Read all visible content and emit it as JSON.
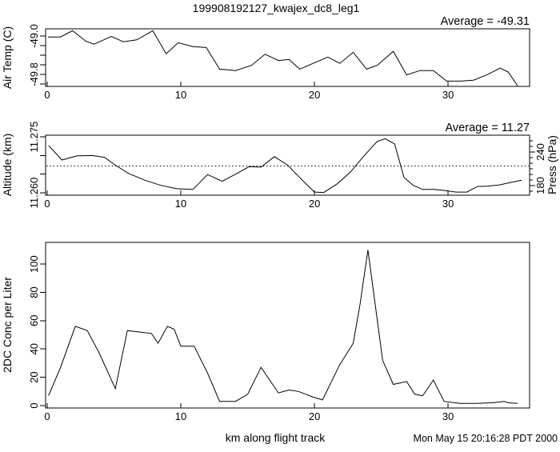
{
  "title": "199908192127_kwajex_dc8_leg1",
  "footer": {
    "xlabel": "km along flight track",
    "timestamp": "Mon May 15 20:16:28 PDT 2000"
  },
  "colors": {
    "line": "#000000",
    "background": "#ffffff",
    "text": "#000000"
  },
  "chart_data": [
    {
      "type": "line",
      "id": "air-temp",
      "ylabel": "Air Temp (C)",
      "annotation": "Average = -49.31",
      "average_value": -49.31,
      "xlim": [
        -0.12,
        36.1
      ],
      "ylim": [
        -50.05,
        -48.85
      ],
      "grid": false,
      "xticks": [
        {
          "v": 0,
          "label": "0"
        },
        {
          "v": 10,
          "label": "10"
        },
        {
          "v": 20,
          "label": "20"
        },
        {
          "v": 30,
          "label": "30"
        }
      ],
      "yticks": [
        {
          "v": -49.0,
          "label": "-49.0"
        },
        {
          "v": -49.2
        },
        {
          "v": -49.4
        },
        {
          "v": -49.6
        },
        {
          "v": -49.8,
          "label": "-49.8"
        },
        {
          "v": -50.0
        }
      ],
      "x": [
        0.05,
        1.0,
        1.9,
        2.9,
        3.5,
        4.8,
        5.7,
        6.7,
        7.9,
        8.9,
        9.8,
        10.9,
        11.9,
        12.9,
        14.1,
        15.3,
        16.3,
        17.3,
        18.1,
        18.9,
        19.9,
        21.0,
        21.9,
        22.9,
        23.9,
        24.7,
        25.9,
        26.9,
        27.9,
        28.9,
        29.9,
        30.9,
        31.9,
        32.9,
        33.9,
        34.5,
        35.2
      ],
      "y": [
        -49.02,
        -49.02,
        -48.89,
        -49.11,
        -49.17,
        -49.01,
        -49.12,
        -49.08,
        -48.89,
        -49.37,
        -49.14,
        -49.22,
        -49.24,
        -49.69,
        -49.72,
        -49.61,
        -49.38,
        -49.51,
        -49.49,
        -49.69,
        -49.57,
        -49.44,
        -49.57,
        -49.34,
        -49.69,
        -49.61,
        -49.32,
        -49.81,
        -49.72,
        -49.72,
        -49.94,
        -49.94,
        -49.92,
        -49.81,
        -49.67,
        -49.75,
        -50.04
      ]
    },
    {
      "type": "line",
      "id": "altitude",
      "ylabel": "Altitude (km)",
      "ylabel_right": "Press (hPa)",
      "annotation": "Average = 11.27",
      "average_value": 11.27,
      "average_line": 11.2672,
      "xlim": [
        -0.12,
        36.1
      ],
      "ylim": [
        11.25936,
        11.27545
      ],
      "grid": false,
      "xticks": [
        {
          "v": 0,
          "label": "0"
        },
        {
          "v": 10,
          "label": "10"
        },
        {
          "v": 20,
          "label": "20"
        },
        {
          "v": 30,
          "label": "30"
        }
      ],
      "yticks": [
        {
          "v": 11.275,
          "label": "11.275"
        },
        {
          "v": 11.27
        },
        {
          "v": 11.265
        },
        {
          "v": 11.26,
          "label": "11.260"
        }
      ],
      "right_axis": {
        "ylim": [
          162.9,
          270.0
        ],
        "major": [
          {
            "v": 240,
            "label": "240"
          },
          {
            "v": 180,
            "label": "180"
          }
        ],
        "minor": [
          170,
          180,
          190,
          200,
          210,
          220,
          230,
          240,
          250,
          260
        ]
      },
      "x": [
        0.1,
        1.1,
        2.2,
        3.4,
        4.3,
        5.1,
        6.1,
        7.3,
        8.5,
        9.7,
        10.9,
        12.0,
        13.1,
        14.2,
        15.1,
        16.0,
        17.0,
        18.0,
        19.0,
        20.0,
        20.7,
        21.7,
        22.7,
        23.7,
        24.7,
        25.3,
        26.0,
        26.7,
        27.4,
        28.1,
        29.0,
        29.8,
        30.6,
        31.4,
        32.2,
        33.0,
        33.8,
        34.6,
        35.5
      ],
      "y": [
        11.2727,
        11.2688,
        11.2699,
        11.27,
        11.2695,
        11.2674,
        11.2652,
        11.2634,
        11.262,
        11.2611,
        11.2609,
        11.2649,
        11.2631,
        11.2652,
        11.267,
        11.2669,
        11.2697,
        11.2674,
        11.2637,
        11.2602,
        11.2601,
        11.2624,
        11.2656,
        11.2699,
        11.2738,
        11.2745,
        11.2731,
        11.2641,
        11.262,
        11.2609,
        11.2609,
        11.2606,
        11.2602,
        11.2602,
        11.2617,
        11.2618,
        11.2621,
        11.2627,
        11.2634
      ]
    },
    {
      "type": "line",
      "id": "conc",
      "ylabel": "2DC Conc per Liter",
      "xlim": [
        -0.12,
        36.1
      ],
      "ylim": [
        -1.7,
        115.3
      ],
      "grid": false,
      "xticks": [
        {
          "v": 0,
          "label": "0"
        },
        {
          "v": 10,
          "label": "10"
        },
        {
          "v": 20,
          "label": "20"
        },
        {
          "v": 30,
          "label": "30"
        }
      ],
      "yticks": [
        {
          "v": 0,
          "label": "0"
        },
        {
          "v": 20,
          "label": "20"
        },
        {
          "v": 40,
          "label": "40"
        },
        {
          "v": 60,
          "label": "60"
        },
        {
          "v": 80,
          "label": "80"
        },
        {
          "v": 100,
          "label": "100"
        }
      ],
      "x": [
        0.1,
        1.0,
        2.1,
        3.0,
        3.9,
        5.1,
        6.0,
        6.9,
        7.8,
        8.3,
        9.0,
        9.5,
        10.0,
        11.0,
        12.0,
        12.9,
        14.1,
        15.0,
        16.0,
        17.3,
        18.1,
        18.8,
        19.9,
        20.6,
        21.9,
        22.9,
        23.4,
        24.0,
        25.1,
        25.9,
        26.9,
        27.5,
        28.1,
        28.9,
        29.7,
        30.9,
        32.1,
        33.3,
        34.2,
        34.5,
        35.2
      ],
      "y": [
        7,
        27,
        56,
        53,
        37,
        12,
        53,
        52,
        51,
        44,
        56,
        54,
        42,
        42,
        23,
        3,
        3,
        8,
        27,
        9,
        11,
        10,
        6,
        4,
        29,
        44,
        71,
        110,
        32,
        15,
        17,
        8,
        7,
        18,
        3,
        1.5,
        1.6,
        2,
        3,
        2,
        1.5
      ]
    }
  ]
}
